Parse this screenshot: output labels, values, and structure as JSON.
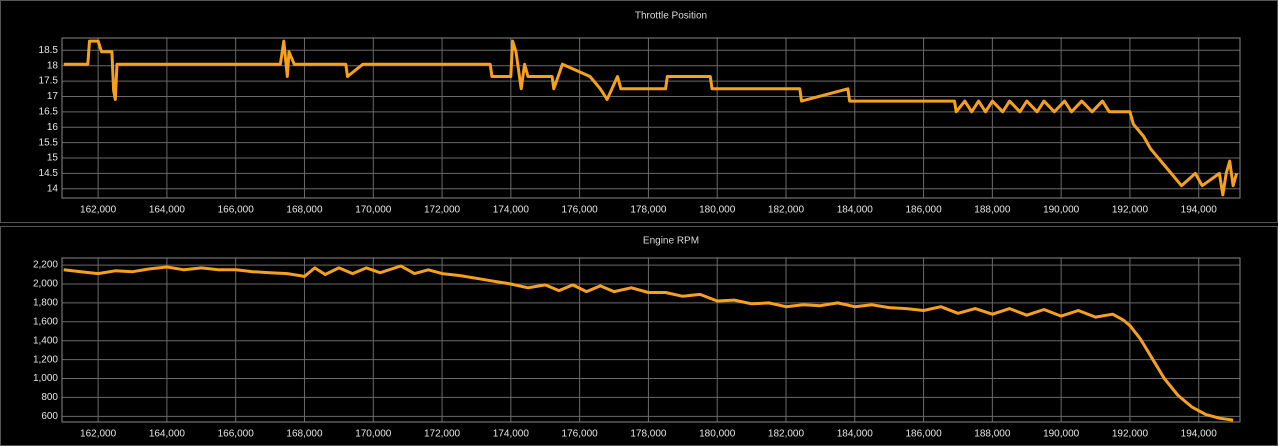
{
  "chart_data": [
    {
      "type": "line",
      "title": "Throttle Position",
      "grid": true,
      "x": [
        161000,
        161700,
        161750,
        162000,
        162100,
        162400,
        162450,
        162500,
        162550,
        167300,
        167400,
        167500,
        167550,
        167700,
        169200,
        169250,
        169700,
        173400,
        173450,
        174000,
        174050,
        174150,
        174300,
        174400,
        174500,
        175200,
        175250,
        175500,
        176300,
        176600,
        176800,
        177100,
        177200,
        178500,
        178550,
        179800,
        179850,
        182400,
        182450,
        183800,
        183850,
        186900,
        186950,
        187200,
        187400,
        187600,
        187800,
        188000,
        188300,
        188500,
        188800,
        189000,
        189300,
        189500,
        189800,
        190100,
        190300,
        190600,
        190900,
        191200,
        191400,
        192000,
        192100,
        192400,
        192600,
        192900,
        193200,
        193500,
        193900,
        194100,
        194600,
        194700,
        194800,
        194900,
        195000,
        195100
      ],
      "xlim": [
        160950,
        195200
      ],
      "xticks": [
        {
          "value": 162000,
          "label": "162,000"
        },
        {
          "value": 164000,
          "label": "164,000"
        },
        {
          "value": 166000,
          "label": "166,000"
        },
        {
          "value": 168000,
          "label": "168,000"
        },
        {
          "value": 170000,
          "label": "170,000"
        },
        {
          "value": 172000,
          "label": "172,000"
        },
        {
          "value": 174000,
          "label": "174,000"
        },
        {
          "value": 176000,
          "label": "176,000"
        },
        {
          "value": 178000,
          "label": "178,000"
        },
        {
          "value": 180000,
          "label": "180,000"
        },
        {
          "value": 182000,
          "label": "182,000"
        },
        {
          "value": 184000,
          "label": "184,000"
        },
        {
          "value": 186000,
          "label": "186,000"
        },
        {
          "value": 188000,
          "label": "188,000"
        },
        {
          "value": 190000,
          "label": "190,000"
        },
        {
          "value": 192000,
          "label": "192,000"
        },
        {
          "value": 194000,
          "label": "194,000"
        }
      ],
      "ylim": [
        13.7,
        18.9
      ],
      "yticks": [
        14,
        14.5,
        15,
        15.5,
        16,
        16.5,
        17,
        17.5,
        18,
        18.5
      ],
      "series": [
        {
          "color": "#f5a01e",
          "values": [
            18.05,
            18.05,
            18.8,
            18.8,
            18.45,
            18.45,
            17.2,
            16.9,
            18.05,
            18.05,
            18.8,
            17.65,
            18.45,
            18.05,
            18.05,
            17.65,
            18.05,
            18.05,
            17.65,
            17.65,
            18.8,
            18.45,
            17.25,
            18.05,
            17.65,
            17.65,
            17.25,
            18.05,
            17.65,
            17.25,
            16.9,
            17.65,
            17.25,
            17.25,
            17.65,
            17.65,
            17.25,
            17.25,
            16.85,
            17.25,
            16.85,
            16.85,
            16.5,
            16.85,
            16.5,
            16.85,
            16.5,
            16.85,
            16.5,
            16.85,
            16.5,
            16.85,
            16.5,
            16.85,
            16.5,
            16.85,
            16.5,
            16.85,
            16.5,
            16.85,
            16.5,
            16.5,
            16.1,
            15.7,
            15.3,
            14.9,
            14.5,
            14.1,
            14.5,
            14.1,
            14.5,
            13.8,
            14.5,
            14.9,
            14.1,
            14.5
          ]
        }
      ]
    },
    {
      "type": "line",
      "title": "Engine RPM",
      "grid": true,
      "x": [
        161000,
        161500,
        162000,
        162500,
        163000,
        163500,
        164000,
        164500,
        165000,
        165500,
        166000,
        166500,
        167000,
        167500,
        168000,
        168300,
        168600,
        169000,
        169400,
        169800,
        170200,
        170800,
        171200,
        171600,
        172000,
        172500,
        173000,
        173500,
        174000,
        174500,
        175000,
        175400,
        175800,
        176200,
        176600,
        177000,
        177500,
        178000,
        178500,
        179000,
        179500,
        180000,
        180500,
        181000,
        181500,
        182000,
        182500,
        183000,
        183500,
        184000,
        184500,
        185000,
        185500,
        186000,
        186500,
        187000,
        187500,
        188000,
        188500,
        189000,
        189500,
        190000,
        190500,
        191000,
        191500,
        191800,
        192000,
        192300,
        192600,
        193000,
        193400,
        193800,
        194200,
        194600,
        195000
      ],
      "xlim": [
        160950,
        195200
      ],
      "xticks": [
        {
          "value": 162000,
          "label": "162,000"
        },
        {
          "value": 164000,
          "label": "164,000"
        },
        {
          "value": 166000,
          "label": "166,000"
        },
        {
          "value": 168000,
          "label": "168,000"
        },
        {
          "value": 170000,
          "label": "170,000"
        },
        {
          "value": 172000,
          "label": "172,000"
        },
        {
          "value": 174000,
          "label": "174,000"
        },
        {
          "value": 176000,
          "label": "176,000"
        },
        {
          "value": 178000,
          "label": "178,000"
        },
        {
          "value": 180000,
          "label": "180,000"
        },
        {
          "value": 182000,
          "label": "182,000"
        },
        {
          "value": 184000,
          "label": "184,000"
        },
        {
          "value": 186000,
          "label": "186,000"
        },
        {
          "value": 188000,
          "label": "188,000"
        },
        {
          "value": 190000,
          "label": "190,000"
        },
        {
          "value": 192000,
          "label": "192,000"
        },
        {
          "value": 194000,
          "label": "194,000"
        }
      ],
      "ylim": [
        540,
        2275
      ],
      "yticks": [
        600,
        800,
        {
          "value": 1000,
          "label": "1,000"
        },
        {
          "value": 1200,
          "label": "1,200"
        },
        {
          "value": 1400,
          "label": "1,400"
        },
        {
          "value": 1600,
          "label": "1,600"
        },
        {
          "value": 1800,
          "label": "1,800"
        },
        {
          "value": 2000,
          "label": "2,000"
        },
        {
          "value": 2200,
          "label": "2,200"
        }
      ],
      "series": [
        {
          "color": "#f5a01e",
          "values": [
            2150,
            2130,
            2110,
            2140,
            2130,
            2160,
            2180,
            2150,
            2170,
            2150,
            2150,
            2130,
            2120,
            2110,
            2080,
            2170,
            2100,
            2170,
            2110,
            2170,
            2120,
            2190,
            2110,
            2150,
            2110,
            2090,
            2060,
            2030,
            2000,
            1960,
            1990,
            1930,
            1990,
            1920,
            1980,
            1920,
            1960,
            1910,
            1910,
            1870,
            1890,
            1820,
            1830,
            1790,
            1800,
            1760,
            1780,
            1770,
            1800,
            1760,
            1780,
            1750,
            1740,
            1720,
            1760,
            1690,
            1740,
            1680,
            1740,
            1670,
            1730,
            1660,
            1720,
            1650,
            1680,
            1620,
            1560,
            1420,
            1240,
            1000,
            820,
            700,
            620,
            580,
            560
          ]
        }
      ]
    }
  ]
}
